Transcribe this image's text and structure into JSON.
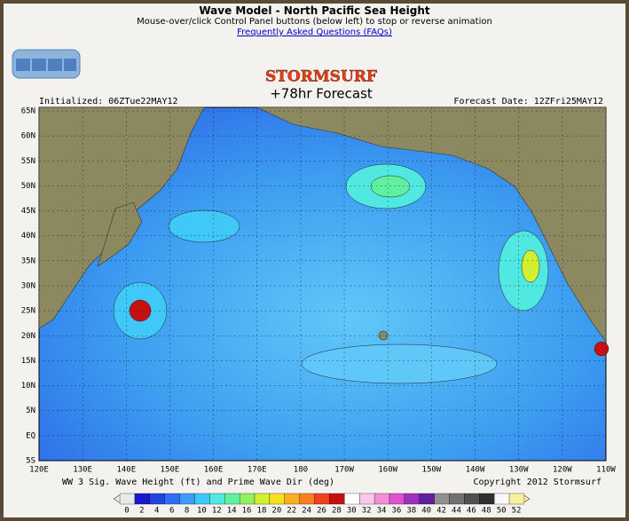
{
  "header": {
    "title": "Wave Model - North Pacific Sea Height",
    "subtitle": "Mouse-over/click Control Panel buttons (below left) to stop or reverse animation",
    "link": "Frequently Asked Questions (FAQs)"
  },
  "map": {
    "brand": "STORMSURF",
    "forecast": "+78hr Forecast",
    "initialized": "Initialized: 06ZTue22MAY12",
    "forecast_date": "Forecast Date: 12ZFri25MAY12",
    "lat_labels": [
      "65N",
      "60N",
      "55N",
      "50N",
      "45N",
      "40N",
      "35N",
      "30N",
      "25N",
      "20N",
      "15N",
      "10N",
      "5N",
      "EQ",
      "5S"
    ],
    "lon_labels": [
      "120E",
      "130E",
      "140E",
      "150E",
      "160E",
      "170E",
      "180",
      "170W",
      "160W",
      "150W",
      "140W",
      "130W",
      "120W",
      "110W"
    ],
    "caption": "WW 3 Sig. Wave Height (ft) and Prime Wave Dir (deg)",
    "copyright": "Copyright 2012 Stormsurf"
  },
  "legend": {
    "labels": [
      0,
      2,
      4,
      6,
      8,
      10,
      12,
      14,
      16,
      18,
      20,
      22,
      24,
      26,
      28,
      30,
      32,
      34,
      36,
      38,
      40,
      42,
      44,
      46,
      48,
      50,
      52
    ],
    "colors": [
      "#e8e8e8",
      "#1a1acc",
      "#2244e0",
      "#2e6ef0",
      "#3c9cf8",
      "#40c8f8",
      "#50e8e0",
      "#60f0a0",
      "#90f060",
      "#d0f030",
      "#f8e020",
      "#f8b020",
      "#f88020",
      "#f04020",
      "#c81010",
      "#ffffff",
      "#f8c8e8",
      "#f090d8",
      "#e050d0",
      "#a030c0",
      "#6020a0",
      "#909090",
      "#707070",
      "#505050",
      "#303030",
      "#f8f8f8",
      "#f8f0a0"
    ]
  }
}
